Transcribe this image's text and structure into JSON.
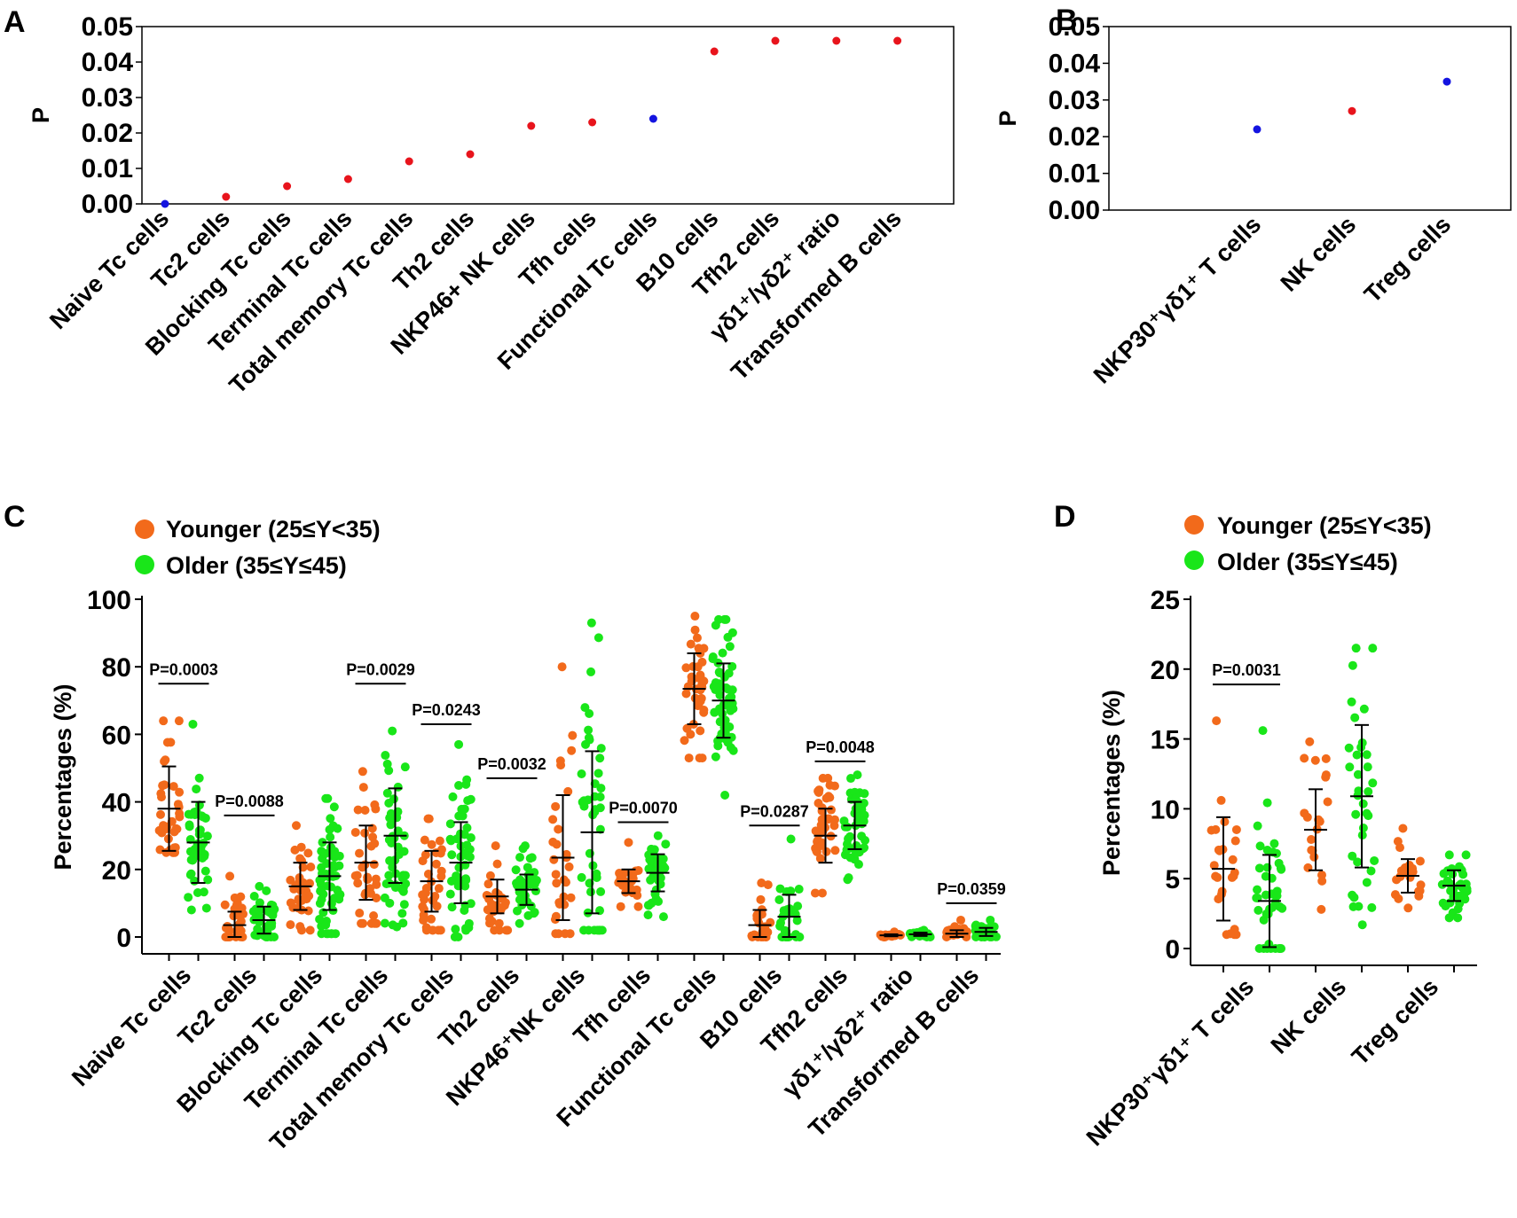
{
  "colors": {
    "sig_red": "#e8141c",
    "sig_blue": "#1414e0",
    "younger": "#f26a1b",
    "older": "#19e619",
    "axis": "#000000"
  },
  "legend": {
    "younger": "Younger (25≤Y<35)",
    "older": "Older (35≤Y≤45)"
  },
  "chart_data": [
    {
      "panel": "A",
      "type": "scatter",
      "ylabel": "P",
      "ylim": [
        0,
        0.05
      ],
      "yticks": [
        "0.00",
        "0.01",
        "0.02",
        "0.03",
        "0.04",
        "0.05"
      ],
      "points": [
        {
          "label": "Naive Tc cells",
          "value": 0.0,
          "color": "blue"
        },
        {
          "label": "Tc2 cells",
          "value": 0.002,
          "color": "red"
        },
        {
          "label": "Blocking Tc cells",
          "value": 0.005,
          "color": "red"
        },
        {
          "label": "Terminal Tc cells",
          "value": 0.007,
          "color": "red"
        },
        {
          "label": "Total memory Tc cells",
          "value": 0.012,
          "color": "red"
        },
        {
          "label": "Th2 cells",
          "value": 0.014,
          "color": "red"
        },
        {
          "label": "NKP46+ NK cells",
          "value": 0.022,
          "color": "red"
        },
        {
          "label": "Tfh cells",
          "value": 0.023,
          "color": "red"
        },
        {
          "label": "Functional Tc cells",
          "value": 0.024,
          "color": "blue"
        },
        {
          "label": "B10 cells",
          "value": 0.043,
          "color": "red"
        },
        {
          "label": "Tfh2 cells",
          "value": 0.046,
          "color": "red"
        },
        {
          "label": "γδ1⁺/γδ2⁺ ratio",
          "value": 0.046,
          "color": "red"
        },
        {
          "label": "Transformed B cells",
          "value": 0.046,
          "color": "red"
        }
      ]
    },
    {
      "panel": "B",
      "type": "scatter",
      "ylabel": "P",
      "ylim": [
        0,
        0.05
      ],
      "yticks": [
        "0.00",
        "0.01",
        "0.02",
        "0.03",
        "0.04",
        "0.05"
      ],
      "points": [
        {
          "label": "NKP30⁺γδ1⁺ T cells",
          "value": 0.022,
          "color": "blue"
        },
        {
          "label": "NK cells",
          "value": 0.027,
          "color": "red"
        },
        {
          "label": "Treg cells",
          "value": 0.035,
          "color": "blue"
        }
      ]
    },
    {
      "panel": "C",
      "type": "scatter",
      "ylabel": "Percentages (%)",
      "ylim": [
        0,
        100
      ],
      "yticks": [
        "0",
        "20",
        "40",
        "60",
        "80",
        "100"
      ],
      "series": [
        "Younger (25≤Y<35)",
        "Older (35≤Y≤45)"
      ],
      "groups": [
        {
          "label": "Naive Tc cells",
          "younger": {
            "mean": 38,
            "sd": 12.5,
            "min": 25,
            "max": 64,
            "n": 35
          },
          "older": {
            "mean": 28,
            "sd": 12,
            "min": 8,
            "max": 63,
            "n": 45
          },
          "p": "P=0.0003",
          "p_value": 75
        },
        {
          "label": "Tc2 cells",
          "younger": {
            "mean": 3.5,
            "sd": 4,
            "min": 0,
            "max": 18,
            "n": 30
          },
          "older": {
            "mean": 5,
            "sd": 4,
            "min": 0,
            "max": 15,
            "n": 40
          },
          "p": "P=0.0088",
          "p_value": 36
        },
        {
          "label": "Blocking Tc cells",
          "younger": {
            "mean": 15,
            "sd": 7,
            "min": 2,
            "max": 33,
            "n": 35
          },
          "older": {
            "mean": 18,
            "sd": 10,
            "min": 1,
            "max": 41,
            "n": 60
          },
          "p": "",
          "p_value": null
        },
        {
          "label": "Terminal Tc cells",
          "younger": {
            "mean": 22,
            "sd": 11,
            "min": 4,
            "max": 49,
            "n": 35
          },
          "older": {
            "mean": 30,
            "sd": 14,
            "min": 3,
            "max": 61,
            "n": 50
          },
          "p": "P=0.0029",
          "p_value": 75
        },
        {
          "label": "Total memory Tc cells",
          "younger": {
            "mean": 16.5,
            "sd": 9,
            "min": 2,
            "max": 35,
            "n": 35
          },
          "older": {
            "mean": 22,
            "sd": 12,
            "min": 0,
            "max": 57,
            "n": 50
          },
          "p": "P=0.0243",
          "p_value": 63
        },
        {
          "label": "Th2 cells",
          "younger": {
            "mean": 12,
            "sd": 5,
            "min": 2,
            "max": 27,
            "n": 30
          },
          "older": {
            "mean": 14,
            "sd": 4.5,
            "min": 4,
            "max": 27,
            "n": 40
          },
          "p": "P=0.0032",
          "p_value": 47
        },
        {
          "label": "NKP46⁺NK cells",
          "younger": {
            "mean": 23.5,
            "sd": 18.5,
            "min": 1,
            "max": 80,
            "n": 30
          },
          "older": {
            "mean": 31,
            "sd": 24,
            "min": 2,
            "max": 93,
            "n": 45
          },
          "p": "",
          "p_value": null
        },
        {
          "label": "Tfh cells",
          "younger": {
            "mean": 16.5,
            "sd": 3.5,
            "min": 9,
            "max": 28,
            "n": 25
          },
          "older": {
            "mean": 19,
            "sd": 5.5,
            "min": 6,
            "max": 30,
            "n": 40
          },
          "p": "P=0.0070",
          "p_value": 34
        },
        {
          "label": "Functional Tc cells",
          "younger": {
            "mean": 73.5,
            "sd": 10.5,
            "min": 53,
            "max": 95,
            "n": 40
          },
          "older": {
            "mean": 70,
            "sd": 11,
            "min": 42,
            "max": 94,
            "n": 55
          },
          "p": "",
          "p_value": null
        },
        {
          "label": "B10 cells",
          "younger": {
            "mean": 3.5,
            "sd": 4.5,
            "min": 0,
            "max": 16,
            "n": 25
          },
          "older": {
            "mean": 6,
            "sd": 6.5,
            "min": 0,
            "max": 29,
            "n": 30
          },
          "p": "P=0.0287",
          "p_value": 33
        },
        {
          "label": "Tfh2 cells",
          "younger": {
            "mean": 30,
            "sd": 8,
            "min": 13,
            "max": 47,
            "n": 40
          },
          "older": {
            "mean": 33,
            "sd": 7,
            "min": 17,
            "max": 48,
            "n": 45
          },
          "p": "P=0.0048",
          "p_value": 52
        },
        {
          "label": "γδ1⁺/γδ2⁺ ratio",
          "younger": {
            "mean": 0.5,
            "sd": 0.3,
            "min": 0,
            "max": 1.5,
            "n": 20
          },
          "older": {
            "mean": 0.8,
            "sd": 0.5,
            "min": 0,
            "max": 2,
            "n": 25
          },
          "p": "",
          "p_value": null
        },
        {
          "label": "Transformed B cells",
          "younger": {
            "mean": 1,
            "sd": 1,
            "min": 0,
            "max": 5,
            "n": 25
          },
          "older": {
            "mean": 1.5,
            "sd": 1.2,
            "min": 0,
            "max": 5,
            "n": 30
          },
          "p": "P=0.0359",
          "p_value": 10
        }
      ]
    },
    {
      "panel": "D",
      "type": "scatter",
      "ylabel": "Percentages (%)",
      "ylim": [
        0,
        25
      ],
      "yticks": [
        "0",
        "5",
        "10",
        "15",
        "20",
        "25"
      ],
      "series": [
        "Younger (25≤Y<35)",
        "Older (35≤Y≤45)"
      ],
      "groups": [
        {
          "label": "NKP30⁺γδ1⁺ T cells",
          "younger": {
            "mean": 5.7,
            "sd": 3.7,
            "min": 1,
            "max": 16.3,
            "n": 25
          },
          "older": {
            "mean": 3.4,
            "sd": 3.3,
            "min": 0,
            "max": 15.6,
            "n": 40
          },
          "p": "P=0.0031",
          "p_value": 18.9
        },
        {
          "label": "NK cells",
          "younger": {
            "mean": 8.5,
            "sd": 2.9,
            "min": 2.8,
            "max": 14.8,
            "n": 20
          },
          "older": {
            "mean": 10.9,
            "sd": 5.1,
            "min": 1.7,
            "max": 21.5,
            "n": 35
          },
          "p": "",
          "p_value": null
        },
        {
          "label": "Treg cells",
          "younger": {
            "mean": 5.2,
            "sd": 1.2,
            "min": 2.9,
            "max": 8.6,
            "n": 20
          },
          "older": {
            "mean": 4.5,
            "sd": 1.1,
            "min": 2.2,
            "max": 6.7,
            "n": 35
          },
          "p": "",
          "p_value": null
        }
      ]
    }
  ]
}
